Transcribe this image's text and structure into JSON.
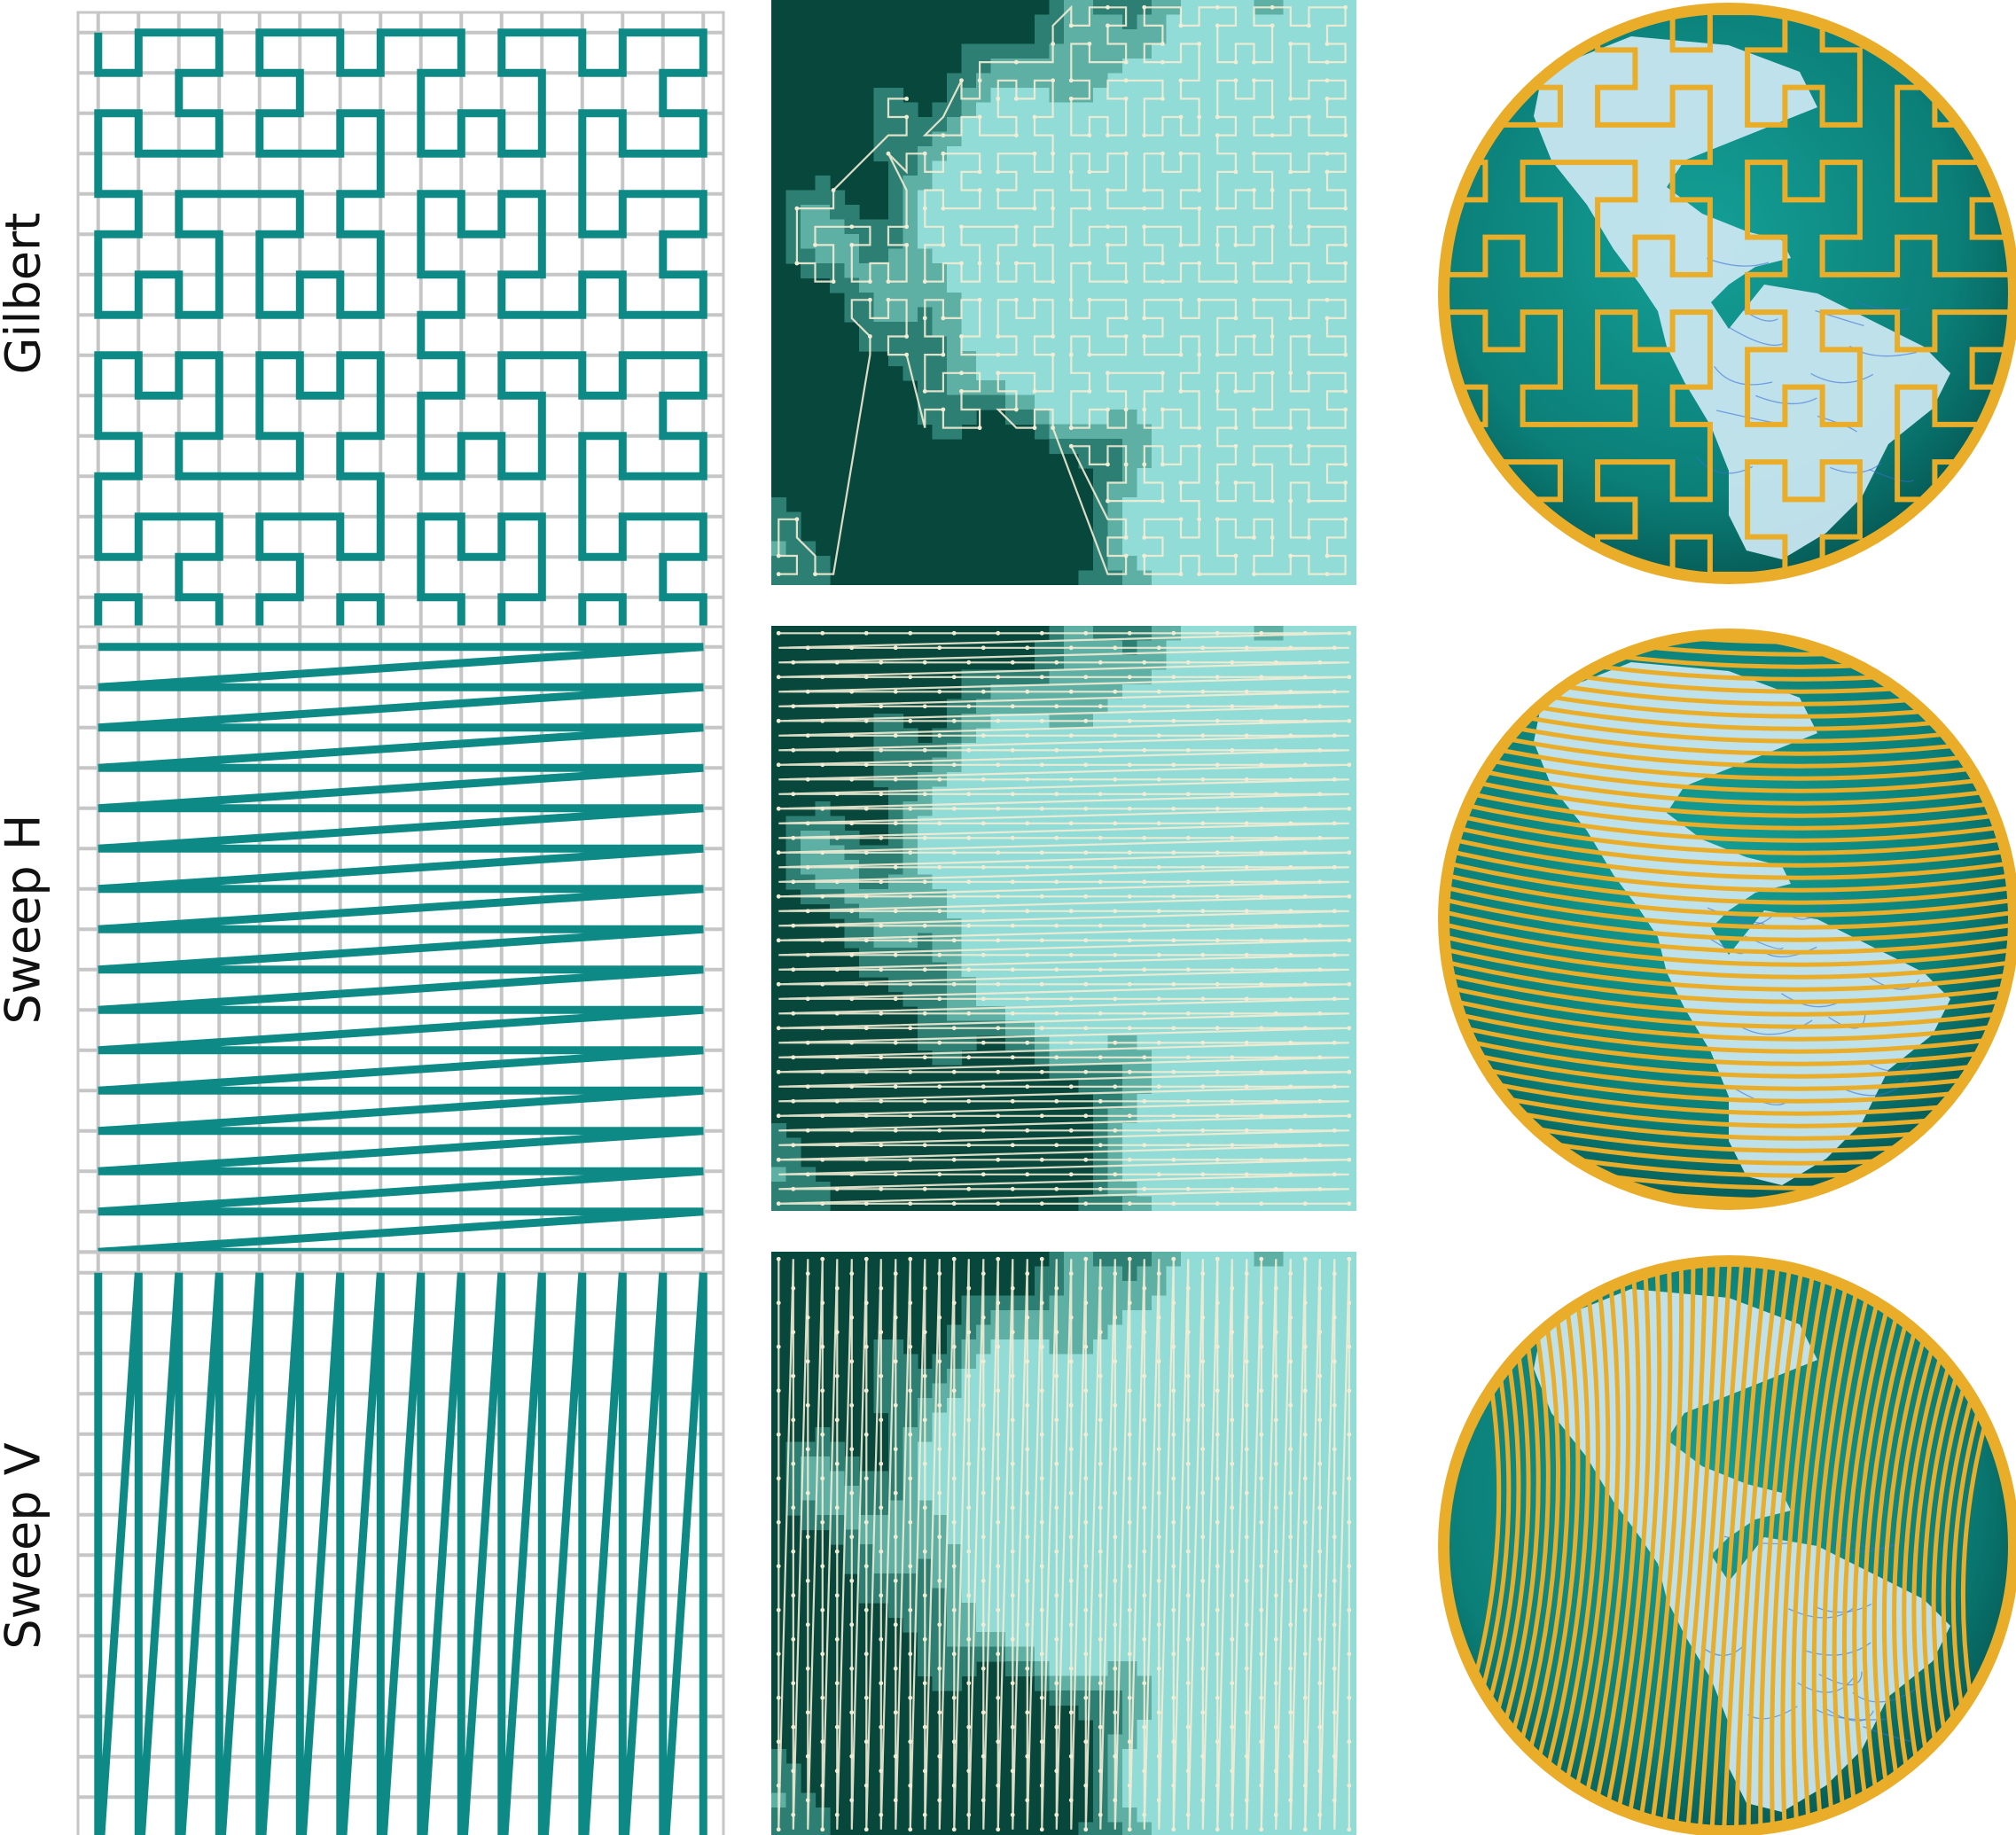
{
  "rows": [
    {
      "label": "Gilbert",
      "order": "gilbert"
    },
    {
      "label": "Sweep H",
      "order": "sweep-h"
    },
    {
      "label": "Sweep V",
      "order": "sweep-v"
    }
  ],
  "grid": {
    "cells": 16
  },
  "colors": {
    "curve": "#0e8a86",
    "grid": "#c6c6c6",
    "heat_levels": [
      "#08483c",
      "#2e7f73",
      "#5fb0a4",
      "#91dcd6"
    ],
    "path_overlay": "#f3ecd5",
    "globe_ocean": "#0d8c84",
    "globe_track": "#e9ad29",
    "globe_land": "#c8e6f0",
    "globe_river": "#3a6fd6"
  },
  "icons": [
    "globe-icon"
  ]
}
